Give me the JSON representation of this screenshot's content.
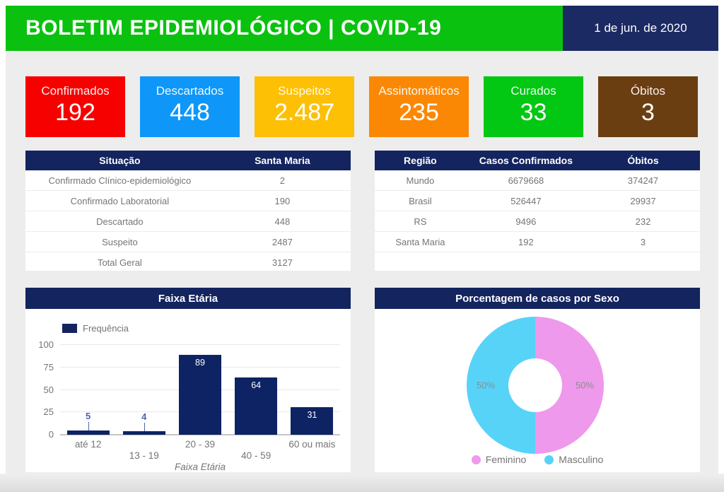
{
  "header": {
    "title": "BOLETIM EPIDEMIOLÓGICO | COVID-19",
    "date": "1 de jun. de 2020"
  },
  "colors": {
    "header_green": "#0bc10f",
    "navy": "#13245f",
    "date_box_navy": "#1b2a63",
    "confirmed_red": "#f70000",
    "discarded_blue": "#0e97f8",
    "suspect_yellow": "#fdc004",
    "asymptomatic_orange": "#fb8804",
    "cured_green": "#02c713",
    "deaths_brown": "#6b3e11",
    "feminine_pink": "#ee99ec",
    "masculine_cyan": "#57d3f8",
    "text_gray": "#757575"
  },
  "stat_cards": [
    {
      "label": "Confirmados",
      "value": "192",
      "color": "#f70000"
    },
    {
      "label": "Descartados",
      "value": "448",
      "color": "#0e97f8"
    },
    {
      "label": "Suspeitos",
      "value": "2.487",
      "color": "#fdc004"
    },
    {
      "label": "Assintomáticos",
      "value": "235",
      "color": "#fb8804"
    },
    {
      "label": "Curados",
      "value": "33",
      "color": "#02c713"
    },
    {
      "label": "Óbitos",
      "value": "3",
      "color": "#6b3e11"
    }
  ],
  "situation_table": {
    "headers": [
      "Situação",
      "Santa Maria"
    ],
    "rows": [
      [
        "Confirmado Clínico-epidemiológico",
        "2"
      ],
      [
        "Confirmado Laboratorial",
        "190"
      ],
      [
        "Descartado",
        "448"
      ],
      [
        "Suspeito",
        "2487"
      ],
      [
        "Total Geral",
        "3127"
      ]
    ]
  },
  "region_table": {
    "headers": [
      "Região",
      "Casos Confirmados",
      "Óbitos"
    ],
    "rows": [
      [
        "Mundo",
        "6679668",
        "374247"
      ],
      [
        "Brasil",
        "526447",
        "29937"
      ],
      [
        "RS",
        "9496",
        "232"
      ],
      [
        "Santa Maria",
        "192",
        "3"
      ]
    ]
  },
  "chart_data": [
    {
      "type": "bar",
      "title": "Faixa Etária",
      "legend": "Frequência",
      "legend_position": "top-left",
      "categories": [
        "até 12",
        "13 - 19",
        "20 - 39",
        "40 - 59",
        "60 ou mais"
      ],
      "values": [
        5,
        4,
        89,
        64,
        31
      ],
      "xlabel": "Faixa Etária",
      "ylabel": "",
      "ylim": [
        0,
        100
      ],
      "yticks": [
        0,
        25,
        50,
        75,
        100
      ],
      "grid": true,
      "bar_color": "#0d2363"
    },
    {
      "type": "pie",
      "title": "Porcentagem de casos por Sexo",
      "labels": [
        "Feminino",
        "Masculino"
      ],
      "values": [
        50,
        50
      ],
      "value_labels": [
        "50%",
        "50%"
      ],
      "colors": [
        "#ee99ec",
        "#57d3f8"
      ],
      "donut": true,
      "legend_position": "bottom"
    }
  ]
}
